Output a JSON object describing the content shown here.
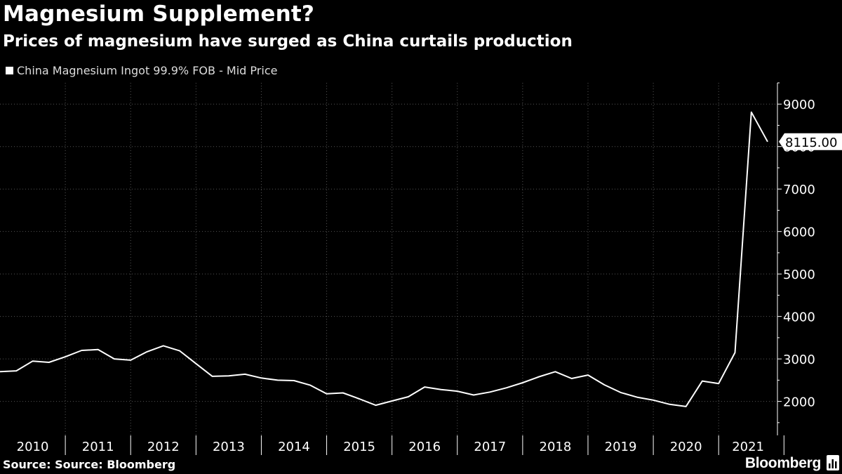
{
  "header": {
    "title": "Magnesium Supplement?",
    "subtitle": "Prices of magnesium have surged as China curtails production"
  },
  "footer": {
    "source": "Source: Source: Bloomberg",
    "brand": "Bloomberg"
  },
  "icons": {
    "brand": "bloomberg-chart-icon"
  },
  "colors": {
    "background": "#000000",
    "line": "#ffffff",
    "grid": "#555555"
  },
  "chart_data": {
    "type": "line",
    "title": "Magnesium Supplement?",
    "subtitle": "Prices of magnesium have surged as China curtails production",
    "xlabel": "",
    "ylabel": "",
    "ylim": [
      1200,
      9500
    ],
    "xlim": [
      2009.75,
      2021.65
    ],
    "grid": true,
    "legend_position": "top-left",
    "yticks": [
      2000,
      3000,
      4000,
      5000,
      6000,
      7000,
      8000,
      9000
    ],
    "ytick_labels": [
      "2000",
      "3000",
      "4000",
      "5000",
      "6000",
      "7000",
      "8000",
      "9000"
    ],
    "xtick_labels": [
      "2010",
      "2011",
      "2012",
      "2013",
      "2014",
      "2015",
      "2016",
      "2017",
      "2018",
      "2019",
      "2020",
      "2021"
    ],
    "last_value_label": "8115.00",
    "series": [
      {
        "name": "China Magnesium Ingot 99.9% FOB - Mid Price",
        "x": [
          2009.75,
          2010.0,
          2010.25,
          2010.5,
          2010.75,
          2011.0,
          2011.25,
          2011.5,
          2011.75,
          2012.0,
          2012.25,
          2012.5,
          2012.75,
          2013.0,
          2013.25,
          2013.5,
          2013.75,
          2014.0,
          2014.25,
          2014.5,
          2014.75,
          2015.0,
          2015.25,
          2015.5,
          2015.75,
          2016.0,
          2016.25,
          2016.5,
          2016.75,
          2017.0,
          2017.25,
          2017.5,
          2017.75,
          2018.0,
          2018.25,
          2018.5,
          2018.75,
          2019.0,
          2019.25,
          2019.5,
          2019.75,
          2020.0,
          2020.25,
          2020.5,
          2020.75,
          2021.0,
          2021.25,
          2021.5
        ],
        "values": [
          2700,
          2720,
          2950,
          2920,
          3050,
          3200,
          3220,
          3000,
          2970,
          3170,
          3310,
          3190,
          2890,
          2590,
          2600,
          2640,
          2550,
          2500,
          2490,
          2380,
          2180,
          2200,
          2060,
          1910,
          2010,
          2110,
          2340,
          2280,
          2240,
          2150,
          2220,
          2320,
          2440,
          2580,
          2700,
          2540,
          2620,
          2390,
          2210,
          2100,
          2030,
          1930,
          1880,
          2480,
          2420,
          3150,
          8810,
          8115
        ]
      }
    ]
  }
}
